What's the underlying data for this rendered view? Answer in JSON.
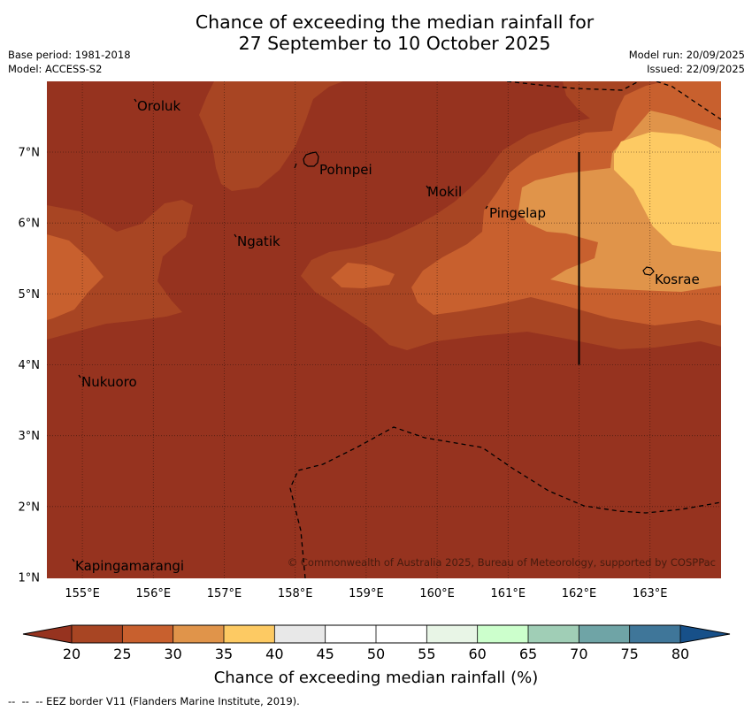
{
  "title": {
    "line1": "Chance of exceeding the median rainfall for",
    "line2": "27 September to 10 October 2025"
  },
  "info": {
    "base_period": "Base period: 1981-2018",
    "model": "Model: ACCESS-S2",
    "model_run": "Model run: 20/09/2025",
    "issued": "Issued: 22/09/2025"
  },
  "map": {
    "lat_labels": [
      "7°N",
      "6°N",
      "5°N",
      "4°N",
      "3°N",
      "2°N",
      "1°N"
    ],
    "lon_labels": [
      "155°E",
      "156°E",
      "157°E",
      "158°E",
      "159°E",
      "160°E",
      "161°E",
      "162°E",
      "163°E"
    ],
    "places": [
      "Oroluk",
      "Pohnpei",
      "Mokil",
      "Pingelap",
      "Ngatik",
      "Kosrae",
      "Nukuoro",
      "Kapingamarangi"
    ],
    "copyright": "© Commonwealth of Australia 2025, Bureau of Meteorology, supported by COSPPac"
  },
  "legend": {
    "title": "Chance of exceeding median rainfall (%)",
    "ticks": [
      "20",
      "25",
      "30",
      "35",
      "40",
      "45",
      "50",
      "55",
      "60",
      "65",
      "70",
      "75",
      "80"
    ],
    "below_color": "#96331f",
    "colors": [
      "#a84523",
      "#c8602e",
      "#e0944a",
      "#fdca63",
      "#e8e8e8",
      "#ffffff",
      "#ffffff",
      "#e8f5e6",
      "#ccffcc",
      "#a0ceb6",
      "#6fa4a6",
      "#3f7699"
    ],
    "above_color": "#175089"
  },
  "footer": {
    "eez_note": "--  --  -- EEZ border V11 (Flanders Marine Institute, 2019)."
  }
}
